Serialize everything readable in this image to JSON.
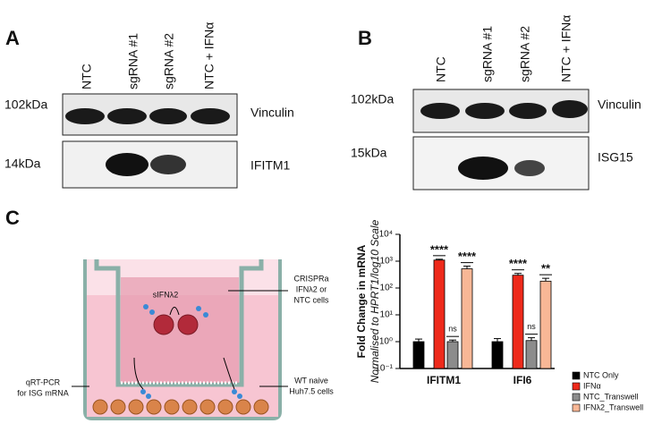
{
  "panels": {
    "a": {
      "letter": "A",
      "lanes": [
        "NTC",
        "sgRNA #1",
        "sgRNA #2",
        "NTC + IFNα"
      ],
      "markers": [
        "102kDa",
        "14kDa"
      ],
      "proteins": [
        "Vinculin",
        "IFITM1"
      ]
    },
    "b": {
      "letter": "B",
      "lanes": [
        "NTC",
        "sgRNA #1",
        "sgRNA #2",
        "NTC + IFNα"
      ],
      "markers": [
        "102kDa",
        "15kDa"
      ],
      "proteins": [
        "Vinculin",
        "ISG15"
      ]
    },
    "c": {
      "letter": "C",
      "diagram": {
        "cytokine": "sIFNλ2",
        "upper_cells": [
          "CRISPRa",
          "IFNλ2 or",
          "NTC cells"
        ],
        "lower_cells": [
          "WT naive",
          "Huh7.5 cells"
        ],
        "readout": [
          "qRT-PCR",
          "for ISG mRNA"
        ]
      }
    }
  },
  "chart_data": {
    "type": "bar",
    "ylabel": "Fold Change in mRNA",
    "ylabel_sub": "Normalised to HPRT1/log10 Scale",
    "categories": [
      "IFITM1",
      "IFI6"
    ],
    "series": [
      {
        "name": "NTC Only",
        "color": "#000000",
        "values": [
          1,
          1
        ],
        "errors": [
          0.25,
          0.3
        ]
      },
      {
        "name": "IFNα",
        "color": "#ee2a1b",
        "values": [
          1100,
          300
        ],
        "errors": [
          80,
          50
        ],
        "annotations": [
          "****",
          "****"
        ]
      },
      {
        "name": "NTC_Transwell",
        "color": "#8c8c8c",
        "values": [
          1,
          1.1
        ],
        "errors": [
          0.15,
          0.3
        ],
        "annotations": [
          "ns",
          "ns"
        ]
      },
      {
        "name": "IFNλ2_Transwell",
        "color": "#f8b796",
        "values": [
          520,
          180
        ],
        "errors": [
          130,
          50
        ],
        "annotations": [
          "****",
          "**"
        ]
      }
    ],
    "log_y": true,
    "ylim": [
      0.1,
      10000
    ],
    "yticks": [
      {
        "value": 0.1,
        "label": "10⁻¹"
      },
      {
        "value": 1,
        "label": "10⁰"
      },
      {
        "value": 10,
        "label": "10¹"
      },
      {
        "value": 100,
        "label": "10²"
      },
      {
        "value": 1000,
        "label": "10³"
      },
      {
        "value": 10000,
        "label": "10⁴"
      }
    ],
    "legend": "right"
  }
}
